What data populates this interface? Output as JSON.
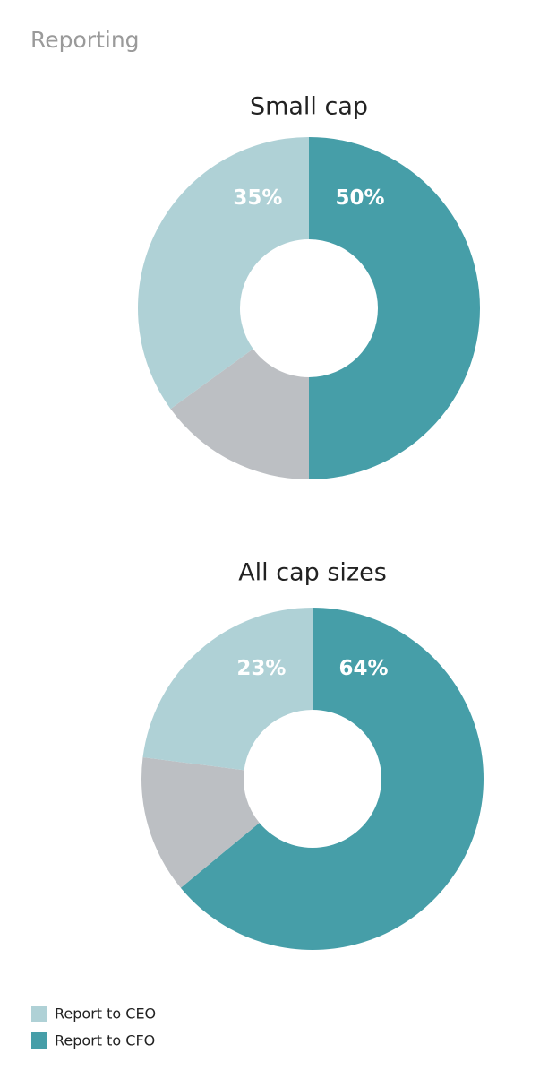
{
  "title": "Reporting",
  "chart_data": [
    {
      "type": "donut",
      "title": "Small cap",
      "values": [
        50,
        15,
        35
      ],
      "value_labels": [
        "50%",
        null,
        "35%"
      ],
      "colors": [
        "#469ea8",
        "#bcbfc3",
        "#afd1d6"
      ]
    },
    {
      "type": "donut",
      "title": "All cap sizes",
      "values": [
        64,
        13,
        23
      ],
      "value_labels": [
        "64%",
        null,
        "23%"
      ],
      "colors": [
        "#469ea8",
        "#bcbfc3",
        "#afd1d6"
      ]
    }
  ],
  "legend": [
    {
      "name": "Report to CEO",
      "color": "#afd1d6"
    },
    {
      "name": "Report to CFO",
      "color": "#469ea8"
    }
  ]
}
